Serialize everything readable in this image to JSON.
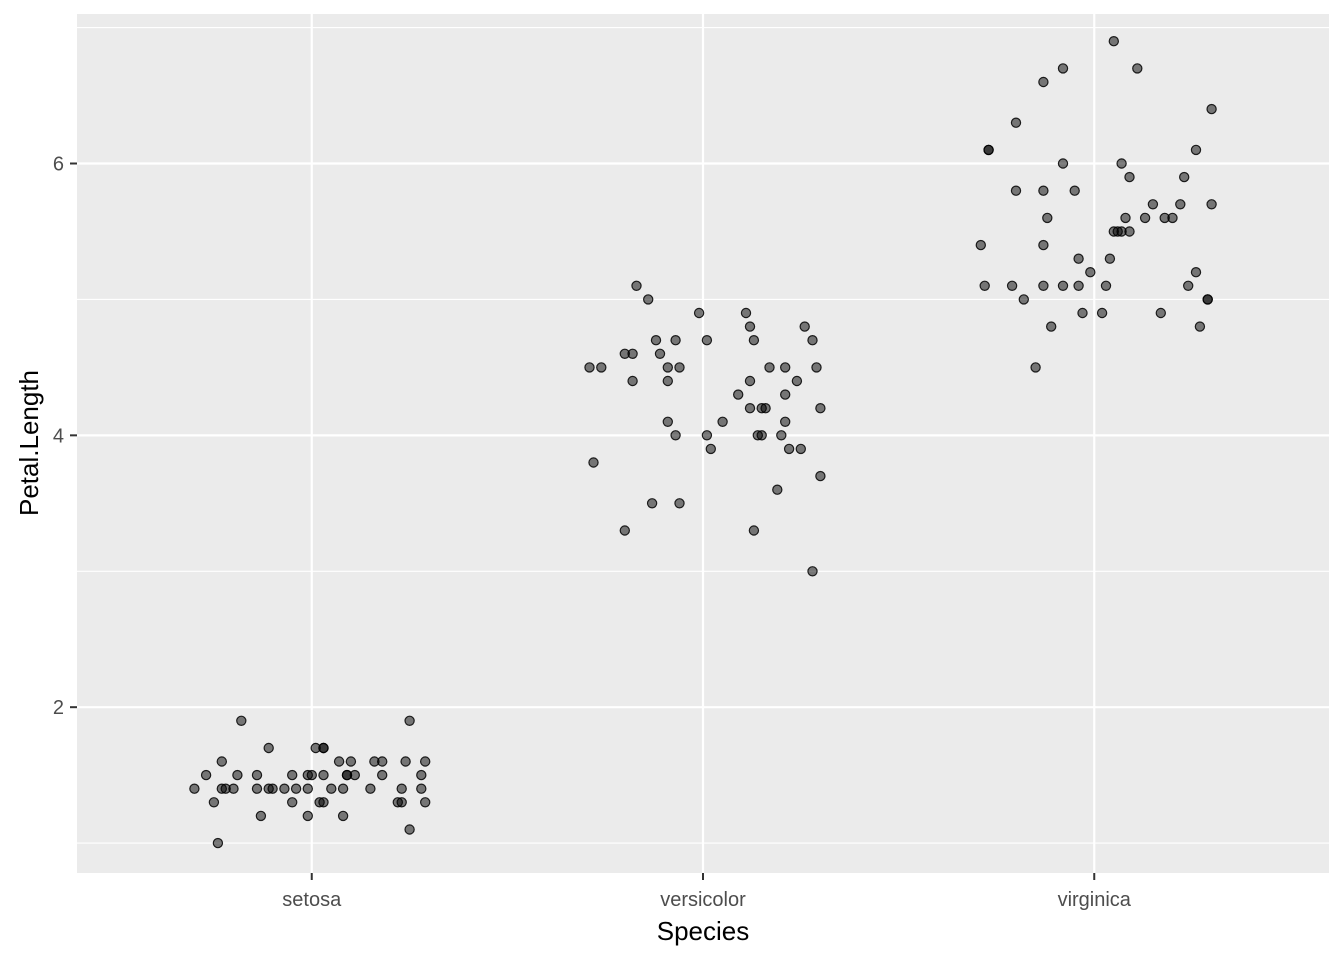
{
  "chart_data": {
    "type": "scatter",
    "xlabel": "Species",
    "ylabel": "Petal.Length",
    "categories": [
      "setosa",
      "versicolor",
      "virginica"
    ],
    "ylim": [
      0.78,
      7.1
    ],
    "yticks": [
      2,
      4,
      6
    ],
    "yminor": [
      1,
      3,
      5,
      7
    ],
    "jitter": true,
    "grid": true,
    "colors": {
      "panel": "#ebebeb",
      "grid": "#ffffff",
      "point": "#000000"
    },
    "series": [
      {
        "category": "setosa",
        "values": [
          1.4,
          1.5,
          1.3,
          1.4,
          1.4,
          1.6,
          1.4,
          1.5,
          1.0,
          1.4,
          1.2,
          1.5,
          1.4,
          1.7,
          1.4,
          1.4,
          1.2,
          1.4,
          1.3,
          1.4,
          1.5,
          1.3,
          1.5,
          1.5,
          1.5,
          1.7,
          1.7,
          1.3,
          1.5,
          1.7,
          1.5,
          1.4,
          1.4,
          1.2,
          1.6,
          1.4,
          1.5,
          1.6,
          1.6,
          1.5,
          1.6,
          1.6,
          1.3,
          1.3,
          1.4,
          1.1,
          1.5,
          1.4,
          1.6,
          1.3,
          1.9,
          1.9
        ],
        "jitter": [
          -0.3,
          -0.27,
          -0.25,
          -0.23,
          -0.22,
          -0.23,
          -0.2,
          -0.19,
          -0.24,
          -0.14,
          -0.13,
          -0.14,
          -0.11,
          -0.11,
          -0.1,
          -0.07,
          -0.01,
          -0.01,
          -0.05,
          -0.04,
          -0.05,
          0.02,
          0.0,
          -0.01,
          0.03,
          0.01,
          0.03,
          0.03,
          0.09,
          0.03,
          0.11,
          0.05,
          0.08,
          0.08,
          0.07,
          0.15,
          0.09,
          0.1,
          0.16,
          0.18,
          0.18,
          0.24,
          0.22,
          0.23,
          0.23,
          0.25,
          0.28,
          0.28,
          0.29,
          0.29,
          -0.18,
          0.25
        ]
      },
      {
        "category": "versicolor",
        "values": [
          4.5,
          4.5,
          3.8,
          3.3,
          4.6,
          4.4,
          4.6,
          5.1,
          5.0,
          3.5,
          4.7,
          4.6,
          4.5,
          4.4,
          4.1,
          4.0,
          4.7,
          4.5,
          3.5,
          4.9,
          4.7,
          4.0,
          3.9,
          4.1,
          4.3,
          4.9,
          4.8,
          4.2,
          4.4,
          4.7,
          3.3,
          4.0,
          4.2,
          4.0,
          4.2,
          4.5,
          3.6,
          4.0,
          4.3,
          4.5,
          4.1,
          3.9,
          4.4,
          3.9,
          4.8,
          4.7,
          4.5,
          3.0,
          3.7,
          4.2
        ],
        "jitter": [
          -0.29,
          -0.26,
          -0.28,
          -0.2,
          -0.2,
          -0.18,
          -0.18,
          -0.17,
          -0.14,
          -0.13,
          -0.12,
          -0.11,
          -0.09,
          -0.09,
          -0.09,
          -0.07,
          -0.07,
          -0.06,
          -0.06,
          -0.01,
          0.01,
          0.01,
          0.02,
          0.05,
          0.09,
          0.11,
          0.12,
          0.12,
          0.12,
          0.13,
          0.13,
          0.14,
          0.15,
          0.15,
          0.16,
          0.17,
          0.19,
          0.2,
          0.21,
          0.21,
          0.21,
          0.22,
          0.24,
          0.25,
          0.26,
          0.28,
          0.29,
          0.28,
          0.3,
          0.3
        ]
      },
      {
        "category": "virginica",
        "values": [
          5.4,
          5.1,
          6.1,
          6.1,
          6.3,
          5.8,
          5.1,
          5.0,
          4.5,
          5.8,
          5.4,
          5.1,
          5.6,
          6.6,
          4.8,
          6.0,
          5.1,
          6.7,
          5.8,
          5.3,
          5.1,
          4.9,
          5.2,
          4.9,
          5.1,
          5.3,
          5.5,
          5.5,
          6.9,
          5.5,
          6.0,
          5.6,
          5.5,
          5.9,
          6.7,
          5.6,
          5.7,
          4.9,
          5.6,
          5.6,
          5.9,
          5.7,
          6.1,
          5.1,
          5.2,
          4.8,
          5.0,
          5.0,
          5.7,
          6.4
        ],
        "jitter": [
          -0.29,
          -0.28,
          -0.27,
          -0.27,
          -0.2,
          -0.2,
          -0.21,
          -0.18,
          -0.15,
          -0.13,
          -0.13,
          -0.13,
          -0.12,
          -0.13,
          -0.11,
          -0.08,
          -0.08,
          -0.08,
          -0.05,
          -0.04,
          -0.04,
          -0.03,
          -0.01,
          0.02,
          0.03,
          0.04,
          0.05,
          0.06,
          0.05,
          0.07,
          0.07,
          0.08,
          0.09,
          0.09,
          0.11,
          0.13,
          0.15,
          0.17,
          0.18,
          0.2,
          0.23,
          0.22,
          0.26,
          0.24,
          0.26,
          0.27,
          0.29,
          0.29,
          0.3,
          0.3
        ]
      }
    ]
  }
}
